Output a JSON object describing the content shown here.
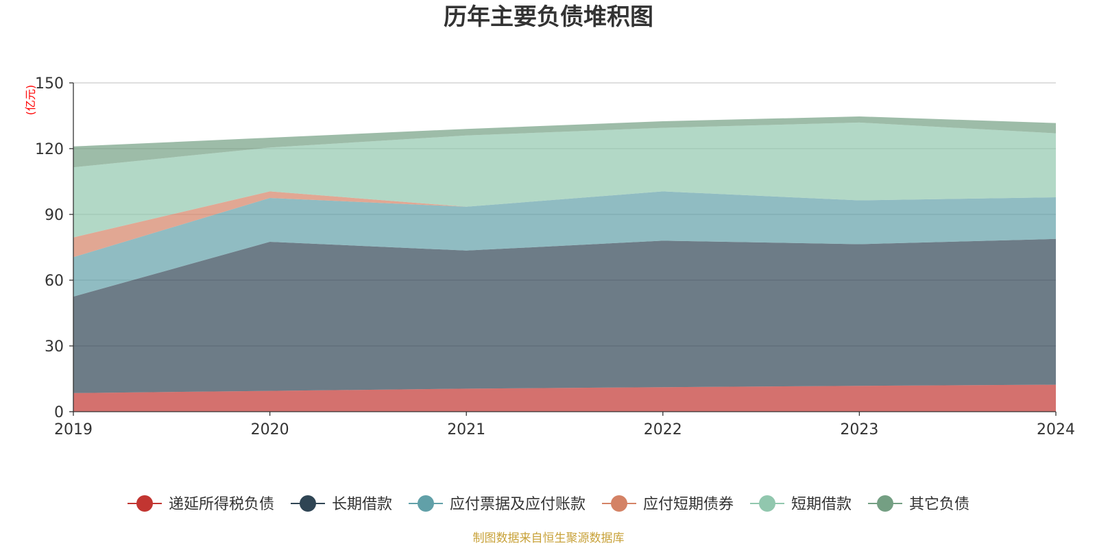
{
  "chart_data": {
    "type": "area",
    "title": "历年主要负债堆积图",
    "unit_label": "(亿元)",
    "x": [
      "2019",
      "2020",
      "2021",
      "2022",
      "2023",
      "2024"
    ],
    "ylim": [
      0,
      150
    ],
    "yticks": [
      "0",
      "30",
      "60",
      "90",
      "120",
      "150"
    ],
    "stacked": true,
    "grid": true,
    "legend_position": "bottom",
    "series": [
      {
        "name": "递延所得税负债",
        "color": "#c23531",
        "values": [
          8.5,
          9.5,
          10.5,
          11.2,
          11.8,
          12.3
        ]
      },
      {
        "name": "长期借款",
        "color": "#2f4554",
        "values": [
          44.0,
          68.0,
          63.0,
          66.8,
          64.6,
          66.5
        ]
      },
      {
        "name": "应付票据及应付账款",
        "color": "#61a0a8",
        "values": [
          18.0,
          20.0,
          20.0,
          22.5,
          20.0,
          19.0
        ]
      },
      {
        "name": "应付短期债券",
        "color": "#d48265",
        "values": [
          9.0,
          3.0,
          0.0,
          0.0,
          0.0,
          0.0
        ]
      },
      {
        "name": "短期借款",
        "color": "#91c7ae",
        "values": [
          32.0,
          20.0,
          32.5,
          29.0,
          35.5,
          29.2
        ]
      },
      {
        "name": "其它负债",
        "color": "#749f83",
        "values": [
          9.5,
          4.5,
          3.0,
          3.0,
          2.8,
          4.7
        ]
      }
    ]
  },
  "source_text": "制图数据来自恒生聚源数据库",
  "colors": {
    "unit": "#ff0000",
    "source": "#c8a23a",
    "axis": "#333333",
    "grid": "#cccccc"
  }
}
